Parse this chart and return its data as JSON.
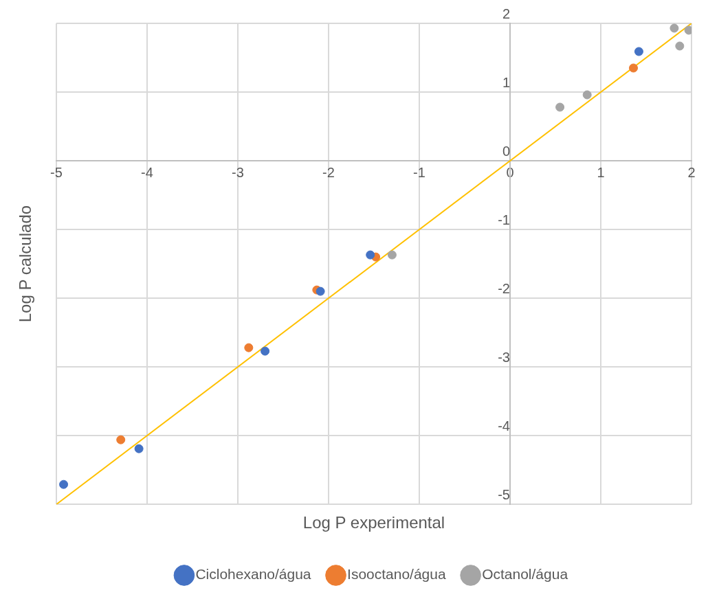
{
  "chart_data": {
    "type": "scatter",
    "xlabel": "Log P experimental",
    "ylabel": "Log P calculado",
    "xlim": [
      -5,
      2
    ],
    "xticks": [
      -5,
      -4,
      -3,
      -2,
      -1,
      0,
      1,
      2
    ],
    "ylim": [
      -5,
      2
    ],
    "yticks": [
      -5,
      -4,
      -3,
      -2,
      -1,
      0,
      1,
      2
    ],
    "grid": true,
    "legend": "bottom",
    "marker": "circle",
    "series": [
      {
        "name": "Ciclohexano/água",
        "color": "#4472c4",
        "x": [
          -4.92,
          -4.09,
          -2.7,
          -2.09,
          -1.54,
          1.42
        ],
        "values": [
          -4.71,
          -4.19,
          -2.77,
          -1.9,
          -1.37,
          1.59
        ]
      },
      {
        "name": "Isooctano/água",
        "color": "#ed7d31",
        "x": [
          -4.29,
          -2.88,
          -2.13,
          -1.48,
          1.36
        ],
        "values": [
          -4.06,
          -2.72,
          -1.88,
          -1.4,
          1.35
        ]
      },
      {
        "name": "Octanol/água",
        "color": "#a5a5a5",
        "x": [
          -1.3,
          0.55,
          0.85,
          1.81,
          1.87,
          1.97
        ],
        "values": [
          -1.37,
          0.78,
          0.96,
          1.93,
          1.67,
          1.9
        ]
      },
      {
        "type": "line",
        "color": "#ffc000",
        "line_style": "solid",
        "marker": "none",
        "x": [
          -5,
          2
        ],
        "values": [
          -5,
          2
        ]
      }
    ]
  }
}
